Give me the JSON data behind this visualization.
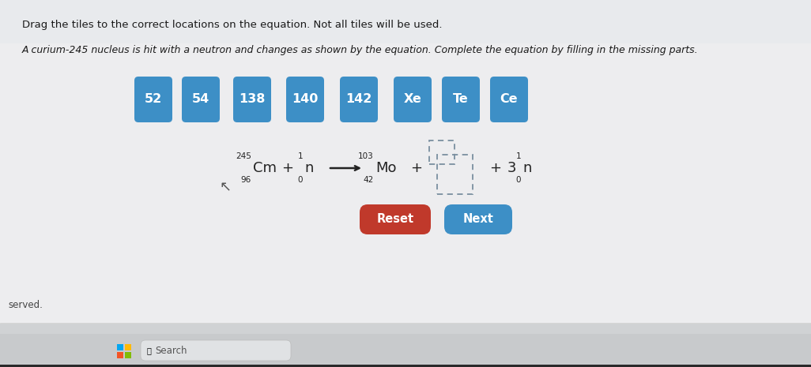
{
  "bg_color": "#e0e2e6",
  "content_bg": "#e8eaed",
  "title_text1": "Drag the tiles to the correct locations on the equation. Not all tiles will be used.",
  "title_text2": "A curium-245 nucleus is hit with a neutron and changes as shown by the equation. Complete the equation by filling in the missing parts.",
  "tiles": [
    "52",
    "54",
    "138",
    "140",
    "142",
    "Xe",
    "Te",
    "Ce"
  ],
  "tile_color": "#3d8fc6",
  "tile_text_color": "#ffffff",
  "reset_color": "#c0392b",
  "next_color": "#3d8fc6",
  "footer_text": "served.",
  "taskbar_bg": "#c8cacd",
  "taskbar_bottom": "#1a1a1a"
}
